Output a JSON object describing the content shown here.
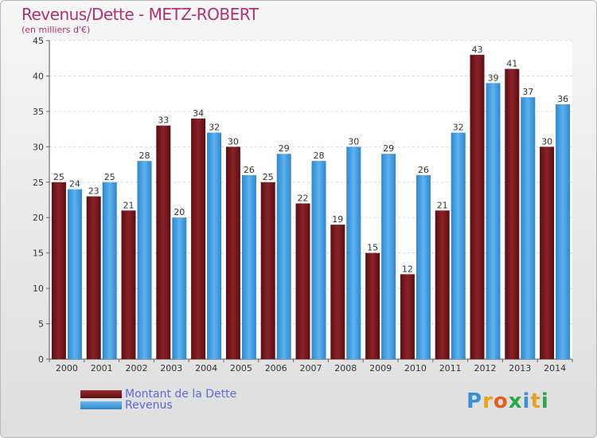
{
  "chart_data": {
    "type": "bar",
    "title": "Revenus/Dette - METZ-ROBERT",
    "subtitle": "(en milliers d'€)",
    "categories": [
      "2000",
      "2001",
      "2002",
      "2003",
      "2004",
      "2005",
      "2006",
      "2007",
      "2008",
      "2009",
      "2010",
      "2011",
      "2012",
      "2013",
      "2014"
    ],
    "series": [
      {
        "name": "Montant de la Dette",
        "color": "#7a1c22",
        "values": [
          25,
          23,
          21,
          33,
          34,
          30,
          25,
          22,
          19,
          15,
          12,
          21,
          43,
          41,
          30
        ]
      },
      {
        "name": "Revenus",
        "color": "#4aa3e8",
        "values": [
          24,
          25,
          28,
          20,
          32,
          26,
          29,
          28,
          30,
          29,
          26,
          32,
          39,
          37,
          36
        ]
      }
    ],
    "ylim": [
      0,
      45
    ],
    "yticks": [
      0,
      5,
      10,
      15,
      20,
      25,
      30,
      35,
      40,
      45
    ],
    "grid": true,
    "legend": "bottom-left"
  },
  "logo": {
    "letters": [
      "P",
      "r",
      "o",
      "x",
      "i",
      "t",
      "i"
    ],
    "colors": [
      "#3b8fd6",
      "#e8a020",
      "#e06020",
      "#2aa84a",
      "#3b8fd6",
      "#e8a020",
      "#2aa84a"
    ]
  }
}
